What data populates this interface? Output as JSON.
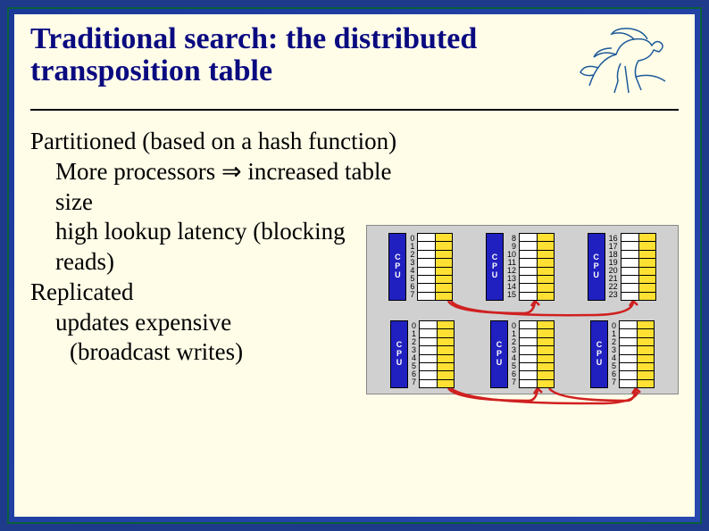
{
  "title": "Traditional search: the distributed transposition table",
  "body": {
    "line1": "Partitioned (based on a hash function)",
    "line2": "More processors ⇒ increased table size",
    "line3": "high lookup latency  (blocking reads)",
    "line4": "Replicated",
    "line5": "updates expensive",
    "line6": "(broadcast writes)"
  },
  "diagram": {
    "cpu_label": [
      "C",
      "P",
      "U"
    ],
    "cpu_bg": "#2020c0",
    "table_bg": "#ffe033",
    "panel_bg": "#d0d0d0",
    "arrow_color": "#d02020",
    "top_row_numbers": [
      [
        "0",
        "1",
        "2",
        "3",
        "4",
        "5",
        "6",
        "7"
      ],
      [
        "8",
        "9",
        "10",
        "11",
        "12",
        "13",
        "14",
        "15"
      ],
      [
        "16",
        "17",
        "18",
        "19",
        "20",
        "21",
        "22",
        "23"
      ]
    ],
    "bottom_row_numbers": [
      [
        "0",
        "1",
        "2",
        "3",
        "4",
        "5",
        "6",
        "7"
      ],
      [
        "0",
        "1",
        "2",
        "3",
        "4",
        "5",
        "6",
        "7"
      ],
      [
        "0",
        "1",
        "2",
        "3",
        "4",
        "5",
        "6",
        "7"
      ]
    ],
    "table_rows": 8
  },
  "colors": {
    "title_color": "#0a0a80",
    "slide_bg": "#fffde8",
    "frame_bg": "#1e3a8a",
    "logo_color": "#1e5a9a"
  }
}
